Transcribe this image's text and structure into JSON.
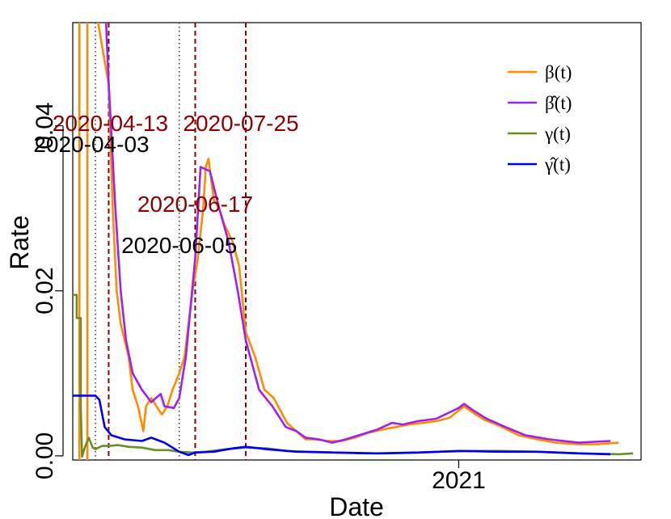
{
  "chart_data": {
    "type": "line",
    "xlabel": "Date",
    "ylabel": "Rate",
    "xlim": [
      "2020-03-17",
      "2021-05-18"
    ],
    "ylim": [
      -0.0005,
      0.0525
    ],
    "x_ticks": [
      {
        "date": "2021-01-01",
        "label": "2021"
      }
    ],
    "y_ticks": [
      {
        "value": 0.0,
        "label": "0.00"
      },
      {
        "value": 0.02,
        "label": "0.02"
      },
      {
        "value": 0.04,
        "label": "0.04"
      }
    ],
    "legend_position": "top-right",
    "series": [
      {
        "name": "β(t)",
        "color": "#FF8C00",
        "points": [
          [
            "2020-03-22",
            0.06
          ],
          [
            "2020-03-22",
            -0.001
          ],
          [
            "2020-03-28",
            -0.001
          ],
          [
            "2020-03-28",
            0.06
          ],
          [
            "2020-04-13",
            0.045
          ],
          [
            "2020-04-16",
            0.03
          ],
          [
            "2020-04-19",
            0.02
          ],
          [
            "2020-04-22",
            0.016
          ],
          [
            "2020-04-25",
            0.014
          ],
          [
            "2020-04-28",
            0.012
          ],
          [
            "2020-05-01",
            0.008
          ],
          [
            "2020-05-05",
            0.006
          ],
          [
            "2020-05-09",
            0.003
          ],
          [
            "2020-05-11",
            0.006
          ],
          [
            "2020-05-15",
            0.007
          ],
          [
            "2020-05-19",
            0.006
          ],
          [
            "2020-05-23",
            0.005
          ],
          [
            "2020-05-27",
            0.006
          ],
          [
            "2020-05-31",
            0.008
          ],
          [
            "2020-06-05",
            0.01
          ],
          [
            "2020-06-09",
            0.012
          ],
          [
            "2020-06-12",
            0.016
          ],
          [
            "2020-06-15",
            0.02
          ],
          [
            "2020-06-19",
            0.024
          ],
          [
            "2020-06-23",
            0.03
          ],
          [
            "2020-06-25",
            0.035
          ],
          [
            "2020-06-27",
            0.036
          ],
          [
            "2020-07-01",
            0.031
          ],
          [
            "2020-07-05",
            0.03
          ],
          [
            "2020-07-09",
            0.028
          ],
          [
            "2020-07-15",
            0.026
          ],
          [
            "2020-07-20",
            0.023
          ],
          [
            "2020-07-25",
            0.015
          ],
          [
            "2020-08-01",
            0.012
          ],
          [
            "2020-08-08",
            0.008
          ],
          [
            "2020-08-15",
            0.007
          ],
          [
            "2020-08-25",
            0.004
          ],
          [
            "2020-09-01",
            0.003
          ],
          [
            "2020-09-08",
            0.002
          ],
          [
            "2020-09-15",
            0.002
          ],
          [
            "2020-09-25",
            0.0018
          ],
          [
            "2020-10-05",
            0.0018
          ],
          [
            "2020-10-15",
            0.0022
          ],
          [
            "2020-10-25",
            0.0028
          ],
          [
            "2020-11-05",
            0.0032
          ],
          [
            "2020-11-15",
            0.0035
          ],
          [
            "2020-11-25",
            0.0038
          ],
          [
            "2020-12-05",
            0.004
          ],
          [
            "2020-12-15",
            0.0042
          ],
          [
            "2020-12-25",
            0.0046
          ],
          [
            "2021-01-01",
            0.0055
          ],
          [
            "2021-01-05",
            0.006
          ],
          [
            "2021-01-12",
            0.0052
          ],
          [
            "2021-01-20",
            0.0044
          ],
          [
            "2021-02-01",
            0.0036
          ],
          [
            "2021-02-15",
            0.0025
          ],
          [
            "2021-03-01",
            0.002
          ],
          [
            "2021-03-15",
            0.0016
          ],
          [
            "2021-04-01",
            0.0014
          ],
          [
            "2021-04-15",
            0.0014
          ],
          [
            "2021-05-01",
            0.0016
          ]
        ]
      },
      {
        "name": "β̂(t)",
        "color": "#A020F0",
        "points": [
          [
            "2020-04-09",
            0.06
          ],
          [
            "2020-04-13",
            0.045
          ],
          [
            "2020-04-18",
            0.03
          ],
          [
            "2020-04-22",
            0.02
          ],
          [
            "2020-04-26",
            0.014
          ],
          [
            "2020-05-01",
            0.01
          ],
          [
            "2020-05-08",
            0.008
          ],
          [
            "2020-05-15",
            0.0065
          ],
          [
            "2020-05-22",
            0.0075
          ],
          [
            "2020-05-25",
            0.006
          ],
          [
            "2020-06-01",
            0.0058
          ],
          [
            "2020-06-05",
            0.007
          ],
          [
            "2020-06-10",
            0.012
          ],
          [
            "2020-06-17",
            0.024
          ],
          [
            "2020-06-21",
            0.035
          ],
          [
            "2020-06-28",
            0.0345
          ],
          [
            "2020-07-05",
            0.03
          ],
          [
            "2020-07-12",
            0.026
          ],
          [
            "2020-07-19",
            0.02
          ],
          [
            "2020-07-25",
            0.014
          ],
          [
            "2020-08-04",
            0.008
          ],
          [
            "2020-08-14",
            0.006
          ],
          [
            "2020-08-24",
            0.0035
          ],
          [
            "2020-09-01",
            0.003
          ],
          [
            "2020-09-08",
            0.0022
          ],
          [
            "2020-09-18",
            0.002
          ],
          [
            "2020-09-28",
            0.0016
          ],
          [
            "2020-10-08",
            0.002
          ],
          [
            "2020-10-20",
            0.0026
          ],
          [
            "2020-11-01",
            0.0032
          ],
          [
            "2020-11-12",
            0.004
          ],
          [
            "2020-11-20",
            0.0038
          ],
          [
            "2020-12-01",
            0.0042
          ],
          [
            "2020-12-15",
            0.0045
          ],
          [
            "2021-01-01",
            0.0058
          ],
          [
            "2021-01-05",
            0.0063
          ],
          [
            "2021-01-12",
            0.0055
          ],
          [
            "2021-01-22",
            0.0045
          ],
          [
            "2021-02-05",
            0.0035
          ],
          [
            "2021-02-20",
            0.0025
          ],
          [
            "2021-03-10",
            0.002
          ],
          [
            "2021-04-01",
            0.0016
          ],
          [
            "2021-04-25",
            0.0018
          ]
        ]
      },
      {
        "name": "γ(t)",
        "color": "#6B8E23",
        "points": [
          [
            "2020-03-17",
            0.0195
          ],
          [
            "2020-03-20",
            0.0195
          ],
          [
            "2020-03-20",
            0.0167
          ],
          [
            "2020-03-23",
            0.0167
          ],
          [
            "2020-03-23",
            0.006
          ],
          [
            "2020-03-24",
            -0.0001
          ],
          [
            "2020-03-26",
            0.001
          ],
          [
            "2020-03-29",
            0.0022
          ],
          [
            "2020-04-01",
            0.001
          ],
          [
            "2020-04-03",
            0.0008
          ],
          [
            "2020-04-08",
            0.0012
          ],
          [
            "2020-04-13",
            0.0012
          ],
          [
            "2020-04-20",
            0.0013
          ],
          [
            "2020-04-28",
            0.0011
          ],
          [
            "2020-05-08",
            0.001
          ],
          [
            "2020-05-18",
            0.0007
          ],
          [
            "2020-05-28",
            0.0007
          ],
          [
            "2020-06-05",
            0.0005
          ],
          [
            "2020-06-15",
            0.0004
          ],
          [
            "2020-06-25",
            0.0005
          ],
          [
            "2020-07-10",
            0.0008
          ],
          [
            "2020-07-25",
            0.001
          ],
          [
            "2020-08-10",
            0.0009
          ],
          [
            "2020-08-25",
            0.0006
          ],
          [
            "2020-09-10",
            0.0005
          ],
          [
            "2020-10-01",
            0.0004
          ],
          [
            "2020-10-20",
            0.0003
          ],
          [
            "2020-11-10",
            0.0003
          ],
          [
            "2020-12-01",
            0.0004
          ],
          [
            "2020-12-20",
            0.0005
          ],
          [
            "2021-01-10",
            0.0006
          ],
          [
            "2021-02-01",
            0.0006
          ],
          [
            "2021-03-01",
            0.0005
          ],
          [
            "2021-04-01",
            0.0003
          ],
          [
            "2021-05-01",
            0.0002
          ],
          [
            "2021-05-12",
            0.0003
          ]
        ]
      },
      {
        "name": "γ̂(t)",
        "color": "#0000EE",
        "points": [
          [
            "2020-03-17",
            0.0073
          ],
          [
            "2020-04-03",
            0.0073
          ],
          [
            "2020-04-06",
            0.0068
          ],
          [
            "2020-04-10",
            0.0035
          ],
          [
            "2020-04-15",
            0.0025
          ],
          [
            "2020-04-25",
            0.002
          ],
          [
            "2020-05-08",
            0.0018
          ],
          [
            "2020-05-15",
            0.0022
          ],
          [
            "2020-05-25",
            0.0016
          ],
          [
            "2020-06-05",
            0.0005
          ],
          [
            "2020-06-12",
            0.0001
          ],
          [
            "2020-06-17",
            0.0004
          ],
          [
            "2020-07-01",
            0.0005
          ],
          [
            "2020-07-15",
            0.0009
          ],
          [
            "2020-07-25",
            0.0011
          ],
          [
            "2020-08-10",
            0.0008
          ],
          [
            "2020-09-01",
            0.0005
          ],
          [
            "2020-10-01",
            0.0004
          ],
          [
            "2020-11-01",
            0.0003
          ],
          [
            "2020-12-01",
            0.0004
          ],
          [
            "2021-01-01",
            0.0006
          ],
          [
            "2021-02-01",
            0.0005
          ],
          [
            "2021-03-01",
            0.0005
          ],
          [
            "2021-04-01",
            0.0003
          ],
          [
            "2021-04-25",
            0.0002
          ]
        ]
      }
    ],
    "vlines": [
      {
        "date": "2020-04-03",
        "style": "dotted",
        "color": "#333333",
        "label": "2020-04-03"
      },
      {
        "date": "2020-04-13",
        "style": "dashed",
        "color": "#8B0000",
        "label": "2020-04-13"
      },
      {
        "date": "2020-06-05",
        "style": "dotted",
        "color": "#333333",
        "label": "2020-06-05"
      },
      {
        "date": "2020-06-17",
        "style": "dashed",
        "color": "#8B0000",
        "label": "2020-06-17"
      },
      {
        "date": "2020-07-25",
        "style": "dashed",
        "color": "#8B0000",
        "label": "2020-07-25"
      }
    ]
  }
}
